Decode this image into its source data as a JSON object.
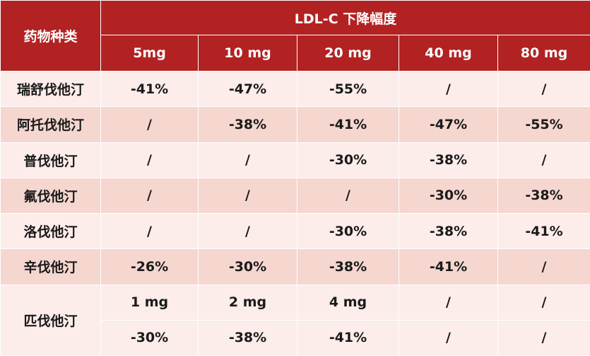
{
  "header": {
    "drug_col": "药物种类",
    "group_title": "LDL-C 下降幅度",
    "doses": [
      "5mg",
      "10 mg",
      "20 mg",
      "40 mg",
      "80 mg"
    ]
  },
  "rows": [
    {
      "drug": "瑞舒伐他汀",
      "values": [
        "-41%",
        "-47%",
        "-55%",
        "/",
        "/"
      ]
    },
    {
      "drug": "阿托伐他汀",
      "values": [
        "/",
        "-38%",
        "-41%",
        "-47%",
        "-55%"
      ]
    },
    {
      "drug": "普伐他汀",
      "values": [
        "/",
        "/",
        "-30%",
        "-38%",
        "/"
      ]
    },
    {
      "drug": "氟伐他汀",
      "values": [
        "/",
        "/",
        "/",
        "-30%",
        "-38%"
      ]
    },
    {
      "drug": "洛伐他汀",
      "values": [
        "/",
        "/",
        "-30%",
        "-38%",
        "-41%"
      ]
    },
    {
      "drug": "辛伐他汀",
      "values": [
        "-26%",
        "-30%",
        "-38%",
        "-41%",
        "/"
      ]
    }
  ],
  "pitavastatin": {
    "drug": "匹伐他汀",
    "doses": [
      "1 mg",
      "2 mg",
      "4 mg",
      "/",
      "/"
    ],
    "values": [
      "-30%",
      "-38%",
      "-41%",
      "/",
      "/"
    ]
  },
  "colors": {
    "header_bg": "#b22222",
    "row_light": "#fcecea",
    "row_dark": "#f5d7d0"
  }
}
